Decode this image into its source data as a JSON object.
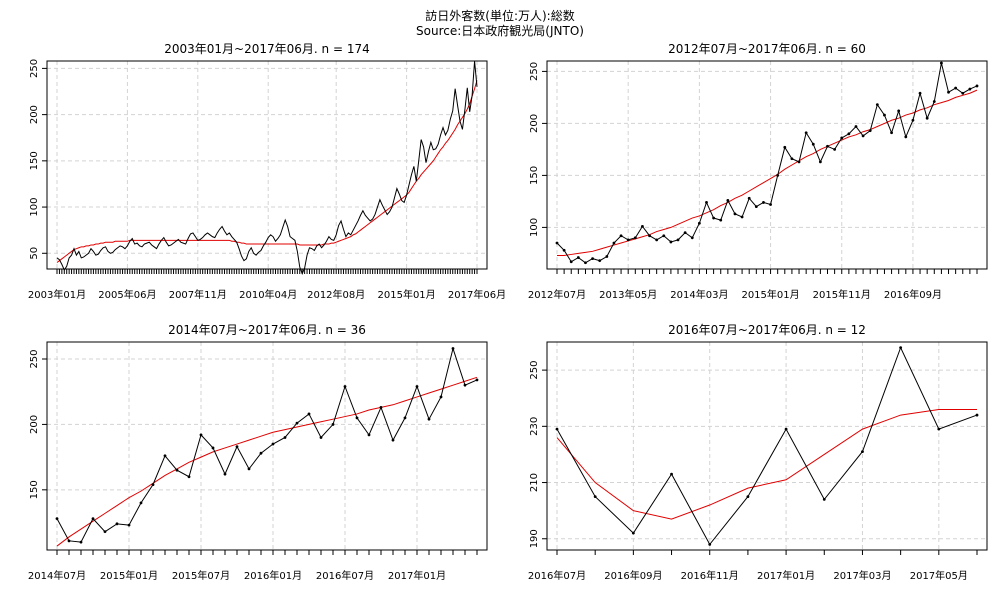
{
  "title": "訪日外客数(単位:万人):総数",
  "subtitle": "Source:日本政府観光局(JNTO)",
  "chart_data": [
    {
      "type": "line",
      "title": "2003年01月~2017年06月. n = 174",
      "start": "2003-01",
      "n": 174,
      "ylim": [
        33,
        258
      ],
      "yticks": [
        50,
        100,
        150,
        200,
        250
      ],
      "xticklabels": [
        {
          "i": 0,
          "label": "2003年01月"
        },
        {
          "i": 29,
          "label": "2005年06月"
        },
        {
          "i": 58,
          "label": "2007年11月"
        },
        {
          "i": 87,
          "label": "2010年04月"
        },
        {
          "i": 115,
          "label": "2012年08月"
        },
        {
          "i": 144,
          "label": "2015年01月"
        },
        {
          "i": 173,
          "label": "2017年06月"
        }
      ],
      "grid": true,
      "series": [
        {
          "values": [
            45,
            43,
            38,
            32,
            36,
            45,
            48,
            55,
            48,
            52,
            45,
            46,
            48,
            50,
            55,
            52,
            48,
            49,
            53,
            56,
            57,
            52,
            50,
            51,
            54,
            56,
            58,
            57,
            55,
            58,
            63,
            66,
            60,
            61,
            58,
            57,
            60,
            61,
            62,
            59,
            57,
            55,
            60,
            64,
            67,
            62,
            58,
            59,
            61,
            63,
            65,
            62,
            61,
            60,
            66,
            71,
            72,
            68,
            64,
            65,
            67,
            70,
            72,
            70,
            68,
            67,
            72,
            76,
            79,
            74,
            70,
            72,
            68,
            65,
            62,
            55,
            47,
            42,
            44,
            52,
            56,
            50,
            48,
            51,
            53,
            58,
            62,
            67,
            70,
            68,
            63,
            66,
            70,
            78,
            86,
            79,
            68,
            66,
            64,
            52,
            35,
            28,
            34,
            48,
            56,
            55,
            53,
            58,
            60,
            56,
            59,
            63,
            68,
            65,
            64,
            70,
            80,
            85,
            76,
            68,
            72,
            70,
            75,
            80,
            85,
            91,
            96,
            91,
            88,
            85,
            87,
            92,
            100,
            108,
            102,
            97,
            92,
            95,
            100,
            110,
            120,
            114,
            107,
            105,
            113,
            124,
            135,
            144,
            128,
            150,
            173,
            165,
            148,
            160,
            170,
            162,
            163,
            168,
            178,
            186,
            178,
            183,
            195,
            204,
            228,
            210,
            193,
            184,
            205,
            229,
            203,
            221,
            258,
            230
          ]
        },
        {
          "values": [
            40,
            42,
            44,
            46,
            48,
            50,
            52,
            54,
            55,
            56,
            57,
            57,
            58,
            58,
            59,
            59,
            60,
            60,
            61,
            61,
            62,
            62,
            62,
            62,
            63,
            63,
            63,
            63,
            63,
            63,
            64,
            64,
            64,
            64,
            64,
            64,
            64,
            64,
            64,
            64,
            64,
            64,
            64,
            64,
            64,
            64,
            64,
            64,
            64,
            64,
            64,
            64,
            64,
            64,
            64,
            64,
            64,
            64,
            64,
            64,
            64,
            64,
            64,
            64,
            64,
            64,
            64,
            64,
            64,
            64,
            64,
            64,
            63,
            63,
            62,
            62,
            61,
            61,
            60,
            60,
            60,
            60,
            60,
            60,
            60,
            60,
            60,
            60,
            60,
            60,
            60,
            60,
            60,
            60,
            60,
            60,
            60,
            60,
            60,
            60,
            59,
            59,
            59,
            59,
            59,
            59,
            59,
            59,
            59,
            59,
            60,
            60,
            60,
            61,
            61,
            62,
            63,
            64,
            65,
            66,
            67,
            68,
            70,
            71,
            73,
            75,
            77,
            79,
            81,
            83,
            85,
            87,
            89,
            91,
            93,
            95,
            97,
            99,
            101,
            103,
            105,
            107,
            109,
            111,
            113,
            116,
            120,
            124,
            128,
            131,
            135,
            138,
            141,
            144,
            147,
            150,
            154,
            158,
            162,
            165,
            169,
            172,
            176,
            180,
            184,
            189,
            193,
            197,
            201,
            206,
            212,
            220,
            228,
            237
          ]
        }
      ]
    },
    {
      "type": "line",
      "title": "2012年07月~2017年06月. n = 60",
      "start": "2012-07",
      "n": 60,
      "ylim": [
        60,
        260
      ],
      "yticks": [
        100,
        150,
        200,
        250
      ],
      "xticklabels": [
        {
          "i": 0,
          "label": "2012年07月"
        },
        {
          "i": 10,
          "label": "2013年05月"
        },
        {
          "i": 20,
          "label": "2014年03月"
        },
        {
          "i": 30,
          "label": "2015年01月"
        },
        {
          "i": 40,
          "label": "2015年11月"
        },
        {
          "i": 50,
          "label": "2016年09月"
        }
      ],
      "grid": true,
      "series": [
        {
          "values": [
            85,
            78,
            67,
            71,
            66,
            70,
            68,
            72,
            85,
            92,
            88,
            90,
            101,
            92,
            88,
            92,
            86,
            88,
            95,
            90,
            104,
            124,
            109,
            107,
            126,
            113,
            110,
            128,
            120,
            124,
            122,
            150,
            177,
            166,
            163,
            191,
            180,
            163,
            178,
            175,
            186,
            190,
            197,
            188,
            193,
            218,
            208,
            191,
            212,
            187,
            203,
            229,
            205,
            221,
            258,
            230,
            234,
            229,
            233,
            236
          ]
        },
        {
          "values": [
            73,
            73,
            74,
            75,
            76,
            77,
            79,
            81,
            83,
            85,
            87,
            89,
            91,
            93,
            96,
            98,
            100,
            103,
            106,
            109,
            111,
            114,
            117,
            121,
            124,
            128,
            131,
            135,
            139,
            143,
            147,
            151,
            156,
            160,
            164,
            168,
            171,
            175,
            178,
            181,
            184,
            187,
            189,
            192,
            194,
            197,
            200,
            203,
            205,
            208,
            210,
            213,
            215,
            218,
            220,
            222,
            225,
            227,
            229,
            232
          ]
        }
      ]
    },
    {
      "type": "line",
      "title": "2014年07月~2017年06月. n = 36",
      "start": "2014-07",
      "n": 36,
      "ylim": [
        104,
        263
      ],
      "yticks": [
        150,
        200,
        250
      ],
      "xticklabels": [
        {
          "i": 0,
          "label": "2014年07月"
        },
        {
          "i": 6,
          "label": "2015年01月"
        },
        {
          "i": 12,
          "label": "2015年07月"
        },
        {
          "i": 18,
          "label": "2016年01月"
        },
        {
          "i": 24,
          "label": "2016年07月"
        },
        {
          "i": 30,
          "label": "2017年01月"
        }
      ],
      "grid": true,
      "series": [
        {
          "values": [
            128,
            111,
            110,
            128,
            118,
            124,
            123,
            140,
            154,
            176,
            165,
            160,
            192,
            182,
            162,
            183,
            166,
            178,
            185,
            190,
            201,
            208,
            190,
            200,
            229,
            205,
            192,
            213,
            188,
            205,
            229,
            204,
            221,
            258,
            230,
            234
          ]
        },
        {
          "values": [
            107,
            114,
            120,
            126,
            132,
            138,
            144,
            149,
            155,
            161,
            166,
            171,
            175,
            179,
            182,
            185,
            188,
            191,
            194,
            196,
            198,
            200,
            202,
            204,
            206,
            208,
            211,
            213,
            215,
            218,
            221,
            224,
            227,
            230,
            233,
            236
          ]
        }
      ]
    },
    {
      "type": "line",
      "title": "2016年07月~2017年06月. n = 12",
      "start": "2016-07",
      "n": 12,
      "ylim": [
        186,
        260
      ],
      "yticks": [
        190,
        210,
        230,
        250
      ],
      "xticklabels": [
        {
          "i": 0,
          "label": "2016年07月"
        },
        {
          "i": 2,
          "label": "2016年09月"
        },
        {
          "i": 4,
          "label": "2016年11月"
        },
        {
          "i": 6,
          "label": "2017年01月"
        },
        {
          "i": 8,
          "label": "2017年03月"
        },
        {
          "i": 10,
          "label": "2017年05月"
        }
      ],
      "grid": true,
      "series": [
        {
          "values": [
            229,
            205,
            192,
            213,
            188,
            205,
            229,
            204,
            221,
            258,
            229,
            234
          ]
        },
        {
          "values": [
            226,
            210,
            200,
            197,
            202,
            208,
            211,
            220,
            229,
            234,
            236,
            236
          ]
        }
      ]
    }
  ],
  "colors": {
    "observed": "#000000",
    "trend": "#e00000",
    "grid": "#d3d3d3"
  }
}
